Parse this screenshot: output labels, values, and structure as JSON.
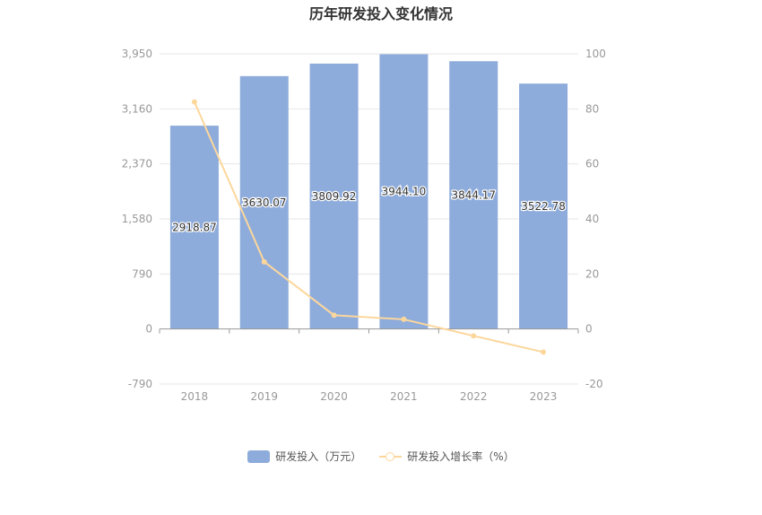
{
  "chart_data": {
    "type": "bar",
    "title": "历年研发投入变化情况",
    "categories": [
      "2018",
      "2019",
      "2020",
      "2021",
      "2022",
      "2023"
    ],
    "series": [
      {
        "name": "研发投入（万元）",
        "type": "bar",
        "axis": "left",
        "values": [
          2918.87,
          3630.07,
          3809.92,
          3944.1,
          3844.17,
          3522.78
        ],
        "value_labels": [
          "2918.87",
          "3630.07",
          "3809.92",
          "3944.10",
          "3844.17",
          "3522.78"
        ]
      },
      {
        "name": "研发投入增长率（%）",
        "type": "line",
        "axis": "right",
        "values": [
          82.5,
          24.4,
          5.0,
          3.5,
          -2.5,
          -8.4
        ]
      }
    ],
    "left_axis": {
      "ticks": [
        -790,
        0,
        790,
        1580,
        2370,
        3160,
        3950
      ],
      "tick_labels": [
        "-790",
        "0",
        "790",
        "1,580",
        "2,370",
        "3,160",
        "3,950"
      ],
      "range": [
        -790,
        3950
      ]
    },
    "right_axis": {
      "ticks": [
        -20,
        0,
        20,
        40,
        60,
        80,
        100
      ],
      "tick_labels": [
        "-20",
        "0",
        "20",
        "40",
        "60",
        "80",
        "100"
      ],
      "range": [
        -20,
        100
      ]
    },
    "grid": true,
    "legend_position": "bottom-center",
    "colors": {
      "bar": "#8eacdb",
      "line": "#fcd79c",
      "grid": "#e6e6e6",
      "axis": "#999999",
      "tick_text": "#999999",
      "label_text": "#333333"
    }
  },
  "legend": {
    "bar_label": "研发投入（万元）",
    "line_label": "研发投入增长率（%）"
  }
}
